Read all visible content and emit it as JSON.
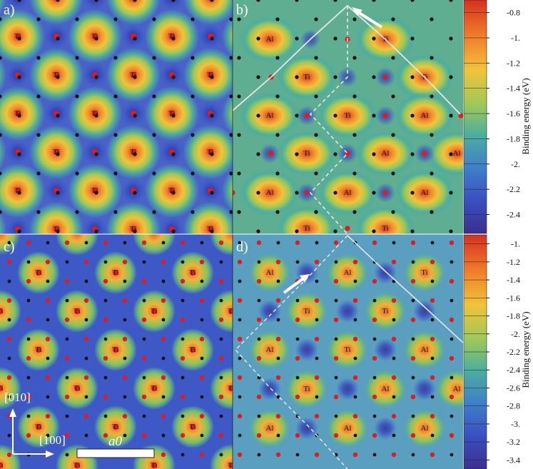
{
  "panels": [
    {
      "label": "a)",
      "atoms": "Ti"
    },
    {
      "label": "b)",
      "atoms": "Ti/Al"
    },
    {
      "label": "c)",
      "atoms": "Ti"
    },
    {
      "label": "d)",
      "atoms": "Ti/Al"
    }
  ],
  "atom_labels": {
    "ti": "Ti",
    "al": "Al"
  },
  "colorbar_top": {
    "title": "Binding energy (eV)",
    "ticks": [
      "-0.8",
      "-1.",
      "-1.2",
      "-1.4",
      "-1.6",
      "-1.8",
      "-2.",
      "-2.2",
      "-2.4"
    ],
    "range": [
      -2.55,
      -0.7
    ]
  },
  "colorbar_bottom": {
    "title": "Binding energy (eV)",
    "ticks": [
      "-1.",
      "-1.2",
      "-1.4",
      "-1.6",
      "-1.8",
      "-2.",
      "-2.2",
      "-2.4",
      "-2.6",
      "-2.8",
      "-3.",
      "-3.2",
      "-3.4"
    ],
    "range": [
      -3.5,
      -0.9
    ]
  },
  "axes": {
    "y_dir": "[010]",
    "x_dir": "[100]",
    "scale_label": "a0"
  },
  "colors": {
    "high": "#d7301f",
    "orange": "#f08c2e",
    "yellow": "#f0c43a",
    "green": "#86c05a",
    "teal": "#4bae9e",
    "blue": "#3a5fcd",
    "deep": "#3b2f8f",
    "site_red": "#e41a1c",
    "site_black": "#111111"
  }
}
